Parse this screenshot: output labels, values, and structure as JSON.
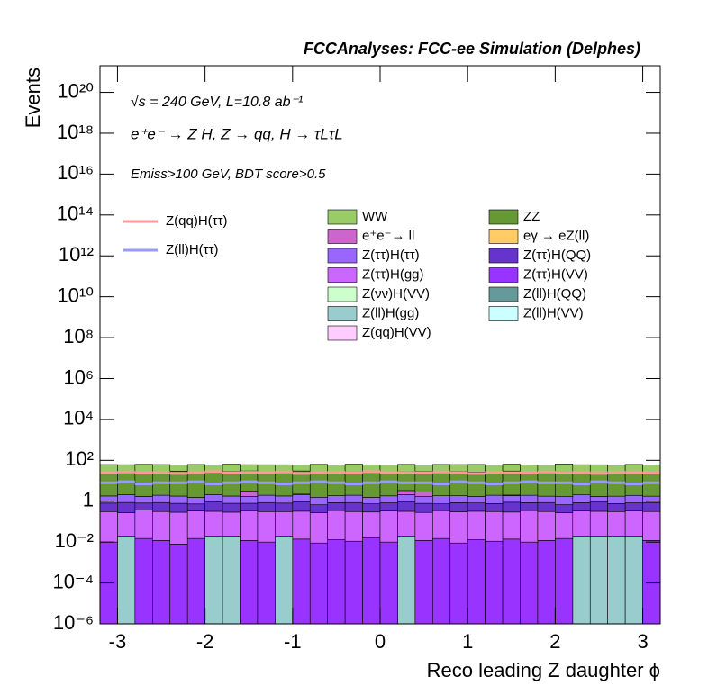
{
  "chart_data": {
    "type": "stacked_histogram",
    "title": "FCCAnalyses: FCC-ee Simulation (Delphes)",
    "annotations": [
      "√s = 240 GeV, L=10.8 ab⁻¹",
      "e⁺e⁻ → Z H, Z → qq, H → τLτL",
      "Emiss>100 GeV, BDT score>0.5"
    ],
    "xlabel": "Reco leading Z daughter ϕ",
    "ylabel": "Events",
    "log_y": true,
    "xlim": [
      -3.2,
      3.2
    ],
    "ylim": [
      1e-06,
      2e+21
    ],
    "xticks": [
      -3,
      -2,
      -1,
      0,
      1,
      2,
      3
    ],
    "yticks": [
      {
        "value": 1e-06,
        "label": "10⁻⁶"
      },
      {
        "value": 0.0001,
        "label": "10⁻⁴"
      },
      {
        "value": 0.01,
        "label": "10⁻²"
      },
      1,
      {
        "value": 100,
        "label": "10²"
      },
      {
        "value": 10000,
        "label": "10⁴"
      },
      {
        "value": 1000000,
        "label": "10⁶"
      },
      {
        "value": 100000000,
        "label": "10⁸"
      },
      {
        "value": 10000000000,
        "label": "10¹⁰"
      },
      {
        "value": 1000000000000,
        "label": "10¹²"
      },
      {
        "value": 100000000000000,
        "label": "10¹⁴"
      },
      {
        "value": 10000000000000000,
        "label": "10¹⁶"
      },
      {
        "value": 1000000000000000000,
        "label": "10¹⁸"
      },
      {
        "value": 100000000000000000000,
        "label": "10²⁰"
      }
    ],
    "bins": [
      -3.2,
      -3.0,
      -2.8,
      -2.6,
      -2.4,
      -2.2,
      -2.0,
      -1.8,
      -1.6,
      -1.4,
      -1.2,
      -1.0,
      -0.8,
      -0.6,
      -0.4,
      -0.2,
      0,
      0.2,
      0.4,
      0.6,
      0.8,
      1.0,
      1.2,
      1.4,
      1.6,
      1.8,
      2.0,
      2.2,
      2.4,
      2.6,
      2.8,
      3.0,
      3.2
    ],
    "series": [
      {
        "name": "WW",
        "color": "#99cc66",
        "values": [
          35,
          32,
          38,
          34,
          30,
          36,
          33,
          37,
          31,
          35,
          34,
          30,
          36,
          33,
          38,
          32,
          35,
          34,
          31,
          37,
          33,
          36,
          30,
          35,
          34,
          32,
          38,
          33,
          36,
          31,
          35,
          34
        ]
      },
      {
        "name": "ZZ",
        "color": "#669933",
        "values": [
          25,
          27,
          24,
          26,
          28,
          25,
          23,
          26,
          27,
          24,
          25,
          28,
          26,
          24,
          25,
          27,
          23,
          26,
          25,
          24,
          27,
          25,
          26,
          28,
          24,
          25,
          27,
          26,
          23,
          25,
          26,
          24
        ]
      },
      {
        "name": "e⁺e⁻→ ll",
        "color": "#cc66cc",
        "values": [
          0,
          0,
          0,
          0,
          0,
          0,
          0,
          0,
          1.5,
          0,
          0,
          0,
          0,
          0,
          0,
          0,
          0,
          1.2,
          1.2,
          0,
          0,
          0,
          0,
          0,
          0,
          0,
          0,
          0,
          0,
          0,
          0,
          0
        ]
      },
      {
        "name": "eγ → eZ(ll)",
        "color": "#ffcc66",
        "values": [
          0,
          0,
          0,
          0,
          0,
          0,
          0,
          0,
          0,
          0,
          0,
          0.1,
          0,
          0,
          0,
          0,
          0,
          0,
          0,
          0,
          0,
          0,
          0,
          0.1,
          0,
          0,
          0,
          0,
          0,
          0,
          0,
          0
        ]
      },
      {
        "name": "Z(ττ)H(ττ)",
        "color": "#9966ff",
        "values": [
          1.0,
          1.2,
          0.9,
          1.1,
          1.0,
          0.8,
          1.2,
          1.0,
          0.9,
          1.1,
          1.0,
          1.2,
          0.9,
          1.0,
          1.1,
          0.8,
          1.0,
          1.2,
          0.9,
          1.1,
          1.0,
          0.9,
          1.2,
          1.0,
          1.1,
          0.9,
          1.0,
          1.2,
          0.8,
          1.0,
          1.1,
          0.9
        ]
      },
      {
        "name": "Z(ττ)H(QQ)",
        "color": "#6633cc",
        "values": [
          0.5,
          0.6,
          0.45,
          0.55,
          0.5,
          0.4,
          0.6,
          0.5,
          0.45,
          0.55,
          0.5,
          0.6,
          0.4,
          0.5,
          0.55,
          0.45,
          0.5,
          0.6,
          0.5,
          0.4,
          0.55,
          0.5,
          0.45,
          0.6,
          0.5,
          0.55,
          0.4,
          0.5,
          0.6,
          0.45,
          0.5,
          0.55
        ]
      },
      {
        "name": "Z(ττ)H(gg)",
        "color": "#cc66ff",
        "values": [
          0.3,
          0.25,
          0.35,
          0.3,
          0.28,
          0.32,
          0.3,
          0.27,
          0.33,
          0.3,
          0.29,
          0.31,
          0.26,
          0.34,
          0.3,
          0.28,
          0.32,
          0.3,
          0.27,
          0.33,
          0.29,
          0.31,
          0.3,
          0.28,
          0.34,
          0.3,
          0.26,
          0.32,
          0.3,
          0.29,
          0.31,
          0.3
        ]
      },
      {
        "name": "Z(ττ)H(VV)",
        "color": "#9933ff",
        "values": [
          0.01,
          0,
          0.015,
          0.012,
          0.008,
          0.015,
          0,
          0,
          0.012,
          0.01,
          0,
          0.014,
          0.009,
          0.013,
          0.011,
          0.016,
          0.01,
          0,
          0.012,
          0.015,
          0.009,
          0.013,
          0.011,
          0.014,
          0.01,
          0.012,
          0.015,
          0,
          0,
          0,
          0,
          0.012
        ]
      },
      {
        "name": "Z(νν)H(VV)",
        "color": "#ccffcc",
        "values": [
          0,
          0,
          0,
          0,
          0,
          0,
          0,
          0,
          0,
          0,
          0,
          0,
          0,
          0,
          0,
          0,
          0,
          0,
          0,
          0,
          0,
          0,
          0,
          0,
          0,
          0,
          0,
          0,
          0,
          0,
          0,
          0
        ]
      },
      {
        "name": "Z(ll)H(QQ)",
        "color": "#669999",
        "values": [
          0,
          0,
          0,
          0,
          0,
          0,
          0,
          0,
          0,
          0,
          0,
          0,
          0,
          0,
          0,
          0,
          0,
          0,
          0,
          0,
          0,
          0,
          0,
          0,
          0,
          0,
          0,
          0,
          0,
          0,
          0,
          0
        ]
      },
      {
        "name": "Z(ll)H(gg)",
        "color": "#99cccc",
        "values": [
          0,
          0.02,
          0,
          0,
          0,
          0,
          0.02,
          0.02,
          0,
          0,
          0.02,
          0,
          0,
          0,
          0,
          0,
          0,
          0.02,
          0,
          0,
          0,
          0,
          0,
          0,
          0,
          0,
          0,
          0.02,
          0.02,
          0.02,
          0.02,
          0
        ]
      },
      {
        "name": "Z(ll)H(VV)",
        "color": "#ccffff",
        "values": [
          0,
          0,
          0,
          0,
          0,
          0,
          0,
          0,
          0,
          0,
          0,
          0,
          0,
          0,
          0,
          0,
          0,
          0,
          0,
          0,
          0,
          0,
          0,
          0,
          0,
          0,
          0,
          0,
          0,
          0,
          0,
          0
        ]
      },
      {
        "name": "Z(qq)H(VV)",
        "color": "#ffccff",
        "values": [
          0,
          0,
          0,
          0,
          0,
          0,
          0,
          0,
          0,
          0,
          0,
          0,
          0,
          0,
          0,
          0,
          0,
          0,
          0,
          0,
          0,
          0,
          0,
          0,
          0,
          0,
          0,
          0,
          0,
          0,
          0,
          0
        ]
      }
    ],
    "lines": [
      {
        "name": "Z(qq)H(ττ)",
        "color": "#ff9999",
        "values": [
          25,
          27,
          24,
          26,
          23,
          25,
          28,
          24,
          26,
          25,
          27,
          23,
          25,
          26,
          24,
          28,
          25,
          26,
          24,
          27,
          25,
          23,
          26,
          25,
          24,
          27,
          26,
          25,
          23,
          26,
          25,
          24
        ]
      },
      {
        "name": "Z(ll)H(ττ)",
        "color": "#9999ff",
        "values": [
          8,
          9,
          7,
          8,
          8,
          9,
          7,
          8,
          9,
          8,
          7,
          8,
          9,
          8,
          7,
          8,
          9,
          8,
          8,
          7,
          9,
          8,
          7,
          8,
          9,
          8,
          8,
          7,
          9,
          8,
          7,
          8
        ]
      }
    ]
  }
}
